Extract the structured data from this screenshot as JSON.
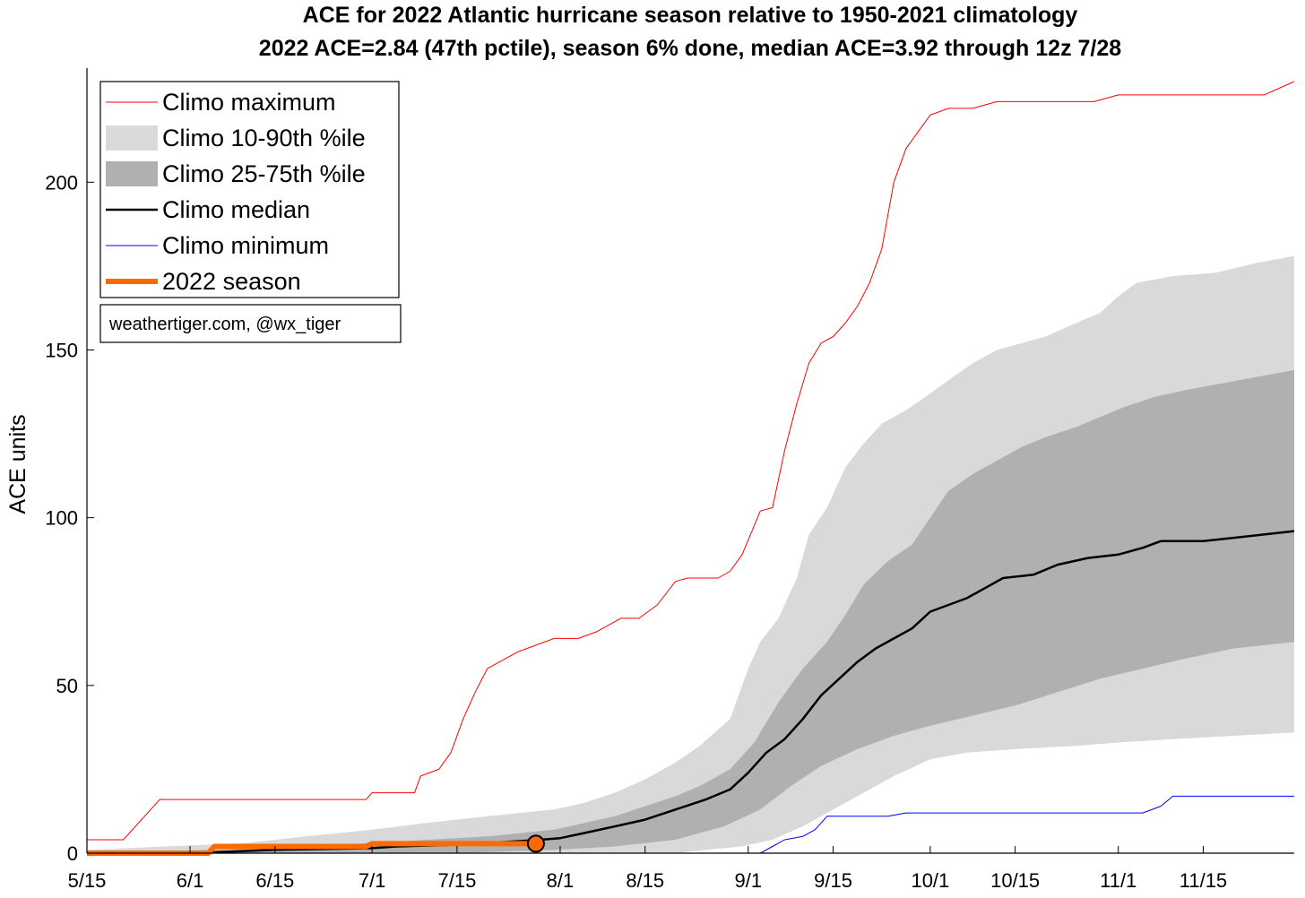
{
  "chart_data": {
    "type": "line",
    "title": "ACE for 2022 Atlantic hurricane season relative to 1950-2021 climatology",
    "subtitle": "2022 ACE=2.84 (47th pctile), season 6% done, median ACE=3.92 through 12z 7/28",
    "ylabel": "ACE units",
    "xlabel": "",
    "ylim": [
      0,
      234
    ],
    "yticks": [
      0,
      50,
      100,
      150,
      200
    ],
    "xlim": [
      "5/15",
      "11/30"
    ],
    "xticks": [
      {
        "label": "5/15",
        "date": "5/15"
      },
      {
        "label": "6/1",
        "date": "6/1"
      },
      {
        "label": "6/15",
        "date": "6/15"
      },
      {
        "label": "7/1",
        "date": "7/1"
      },
      {
        "label": "7/15",
        "date": "7/15"
      },
      {
        "label": "8/1",
        "date": "8/1"
      },
      {
        "label": "8/15",
        "date": "8/15"
      },
      {
        "label": "9/1",
        "date": "9/1"
      },
      {
        "label": "9/15",
        "date": "9/15"
      },
      {
        "label": "10/1",
        "date": "10/1"
      },
      {
        "label": "10/15",
        "date": "10/15"
      },
      {
        "label": "11/1",
        "date": "11/1"
      },
      {
        "label": "11/15",
        "date": "11/15"
      }
    ],
    "grid": false,
    "legend_position": "top-left",
    "credit": "weathertiger.com, @wx_tiger",
    "legend": [
      {
        "label": "Climo maximum",
        "kind": "line",
        "color": "#ff0000",
        "width": 1
      },
      {
        "label": "Climo 10-90th %ile",
        "kind": "patch",
        "color": "#d9d9d9"
      },
      {
        "label": "Climo 25-75th %ile",
        "kind": "patch",
        "color": "#b0b0b0"
      },
      {
        "label": "Climo median",
        "kind": "line",
        "color": "#000000",
        "width": 2.5
      },
      {
        "label": "Climo minimum",
        "kind": "line",
        "color": "#0000ff",
        "width": 1
      },
      {
        "label": "2022 season",
        "kind": "line",
        "color": "#ff6a00",
        "width": 6
      }
    ],
    "series": [
      {
        "name": "Climo maximum",
        "color": "#ff0000",
        "points": [
          [
            "5/15",
            4
          ],
          [
            "5/21",
            4
          ],
          [
            "5/24",
            10
          ],
          [
            "5/27",
            16
          ],
          [
            "6/1",
            16
          ],
          [
            "6/15",
            16
          ],
          [
            "6/30",
            16
          ],
          [
            "7/1",
            18
          ],
          [
            "7/8",
            18
          ],
          [
            "7/9",
            23
          ],
          [
            "7/12",
            25
          ],
          [
            "7/14",
            30
          ],
          [
            "7/16",
            40
          ],
          [
            "7/18",
            48
          ],
          [
            "7/20",
            55
          ],
          [
            "7/22",
            57
          ],
          [
            "7/25",
            60
          ],
          [
            "7/28",
            62
          ],
          [
            "7/31",
            64
          ],
          [
            "8/4",
            64
          ],
          [
            "8/7",
            66
          ],
          [
            "8/11",
            70
          ],
          [
            "8/14",
            70
          ],
          [
            "8/17",
            74
          ],
          [
            "8/20",
            81
          ],
          [
            "8/22",
            82
          ],
          [
            "8/27",
            82
          ],
          [
            "8/29",
            84
          ],
          [
            "8/31",
            89
          ],
          [
            "9/3",
            102
          ],
          [
            "9/5",
            103
          ],
          [
            "9/7",
            120
          ],
          [
            "9/9",
            134
          ],
          [
            "9/11",
            146
          ],
          [
            "9/13",
            152
          ],
          [
            "9/15",
            154
          ],
          [
            "9/17",
            158
          ],
          [
            "9/19",
            163
          ],
          [
            "9/21",
            170
          ],
          [
            "9/23",
            180
          ],
          [
            "9/25",
            200
          ],
          [
            "9/27",
            210
          ],
          [
            "9/29",
            215
          ],
          [
            "10/1",
            220
          ],
          [
            "10/4",
            222
          ],
          [
            "10/8",
            222
          ],
          [
            "10/12",
            224
          ],
          [
            "10/20",
            224
          ],
          [
            "10/28",
            224
          ],
          [
            "11/1",
            226
          ],
          [
            "11/10",
            226
          ],
          [
            "11/20",
            226
          ],
          [
            "11/25",
            226
          ],
          [
            "11/30",
            230
          ]
        ]
      },
      {
        "name": "Climo minimum",
        "color": "#0000ff",
        "points": [
          [
            "5/15",
            0
          ],
          [
            "9/3",
            0
          ],
          [
            "9/5",
            2
          ],
          [
            "9/7",
            4
          ],
          [
            "9/10",
            5
          ],
          [
            "9/12",
            7
          ],
          [
            "9/14",
            11
          ],
          [
            "9/17",
            11
          ],
          [
            "9/24",
            11
          ],
          [
            "9/27",
            12
          ],
          [
            "10/15",
            12
          ],
          [
            "10/31",
            12
          ],
          [
            "11/5",
            12
          ],
          [
            "11/8",
            14
          ],
          [
            "11/10",
            17
          ],
          [
            "11/20",
            17
          ],
          [
            "11/30",
            17
          ]
        ]
      },
      {
        "name": "Climo median",
        "color": "#000000",
        "points": [
          [
            "5/15",
            0
          ],
          [
            "6/1",
            0
          ],
          [
            "6/15",
            1
          ],
          [
            "7/1",
            1.5
          ],
          [
            "7/5",
            2
          ],
          [
            "7/15",
            2.5
          ],
          [
            "7/28",
            3.9
          ],
          [
            "8/1",
            4.5
          ],
          [
            "8/5",
            6
          ],
          [
            "8/10",
            8
          ],
          [
            "8/15",
            10
          ],
          [
            "8/20",
            13
          ],
          [
            "8/25",
            16
          ],
          [
            "8/29",
            19
          ],
          [
            "9/1",
            24
          ],
          [
            "9/4",
            30
          ],
          [
            "9/7",
            34
          ],
          [
            "9/10",
            40
          ],
          [
            "9/13",
            47
          ],
          [
            "9/16",
            52
          ],
          [
            "9/19",
            57
          ],
          [
            "9/22",
            61
          ],
          [
            "9/25",
            64
          ],
          [
            "9/28",
            67
          ],
          [
            "10/1",
            72
          ],
          [
            "10/4",
            74
          ],
          [
            "10/7",
            76
          ],
          [
            "10/10",
            79
          ],
          [
            "10/13",
            82
          ],
          [
            "10/18",
            83
          ],
          [
            "10/22",
            86
          ],
          [
            "10/27",
            88
          ],
          [
            "11/1",
            89
          ],
          [
            "11/5",
            91
          ],
          [
            "11/8",
            93
          ],
          [
            "11/15",
            93
          ],
          [
            "11/20",
            94
          ],
          [
            "11/25",
            95
          ],
          [
            "11/30",
            96
          ]
        ]
      },
      {
        "name": "2022 season",
        "color": "#ff6a00",
        "points": [
          [
            "5/15",
            0
          ],
          [
            "6/4",
            0
          ],
          [
            "6/5",
            2
          ],
          [
            "6/30",
            2
          ],
          [
            "7/1",
            2.84
          ],
          [
            "7/28",
            2.84
          ]
        ]
      }
    ],
    "bands": [
      {
        "name": "Climo 10-90th %ile",
        "color": "#d9d9d9",
        "upper": [
          [
            "5/15",
            1
          ],
          [
            "5/28",
            2
          ],
          [
            "6/10",
            3
          ],
          [
            "6/20",
            5
          ],
          [
            "7/1",
            7
          ],
          [
            "7/10",
            9
          ],
          [
            "7/20",
            11
          ],
          [
            "7/31",
            13
          ],
          [
            "8/5",
            15
          ],
          [
            "8/10",
            18
          ],
          [
            "8/15",
            22
          ],
          [
            "8/20",
            27
          ],
          [
            "8/24",
            32
          ],
          [
            "8/29",
            40
          ],
          [
            "9/1",
            55
          ],
          [
            "9/3",
            63
          ],
          [
            "9/6",
            70
          ],
          [
            "9/9",
            82
          ],
          [
            "9/11",
            95
          ],
          [
            "9/14",
            103
          ],
          [
            "9/17",
            115
          ],
          [
            "9/20",
            122
          ],
          [
            "9/23",
            128
          ],
          [
            "9/27",
            132
          ],
          [
            "10/1",
            137
          ],
          [
            "10/4",
            141
          ],
          [
            "10/8",
            146
          ],
          [
            "10/12",
            150
          ],
          [
            "10/16",
            152
          ],
          [
            "10/20",
            154
          ],
          [
            "10/25",
            158
          ],
          [
            "10/29",
            161
          ],
          [
            "11/1",
            166
          ],
          [
            "11/4",
            170
          ],
          [
            "11/10",
            172
          ],
          [
            "11/17",
            173
          ],
          [
            "11/24",
            176
          ],
          [
            "11/30",
            178
          ]
        ],
        "lower": [
          [
            "5/15",
            0
          ],
          [
            "8/20",
            0
          ],
          [
            "8/25",
            1
          ],
          [
            "8/31",
            2
          ],
          [
            "9/5",
            4
          ],
          [
            "9/10",
            8
          ],
          [
            "9/15",
            13
          ],
          [
            "9/20",
            18
          ],
          [
            "9/25",
            23
          ],
          [
            "10/1",
            28
          ],
          [
            "10/7",
            30
          ],
          [
            "10/15",
            31
          ],
          [
            "10/25",
            32
          ],
          [
            "11/1",
            33
          ],
          [
            "11/10",
            34
          ],
          [
            "11/20",
            35
          ],
          [
            "11/30",
            36
          ]
        ]
      },
      {
        "name": "Climo 25-75th %ile",
        "color": "#b0b0b0",
        "upper": [
          [
            "5/15",
            0
          ],
          [
            "6/5",
            1
          ],
          [
            "6/20",
            2
          ],
          [
            "7/1",
            3
          ],
          [
            "7/10",
            4
          ],
          [
            "7/20",
            5
          ],
          [
            "7/31",
            7
          ],
          [
            "8/5",
            9
          ],
          [
            "8/10",
            11
          ],
          [
            "8/15",
            14
          ],
          [
            "8/20",
            17
          ],
          [
            "8/24",
            20
          ],
          [
            "8/29",
            25
          ],
          [
            "9/2",
            33
          ],
          [
            "9/6",
            45
          ],
          [
            "9/10",
            55
          ],
          [
            "9/14",
            63
          ],
          [
            "9/17",
            71
          ],
          [
            "9/20",
            80
          ],
          [
            "9/24",
            87
          ],
          [
            "9/28",
            92
          ],
          [
            "10/1",
            100
          ],
          [
            "10/4",
            108
          ],
          [
            "10/8",
            113
          ],
          [
            "10/12",
            117
          ],
          [
            "10/16",
            121
          ],
          [
            "10/20",
            124
          ],
          [
            "10/25",
            127
          ],
          [
            "10/29",
            130
          ],
          [
            "11/2",
            133
          ],
          [
            "11/7",
            136
          ],
          [
            "11/12",
            138
          ],
          [
            "11/18",
            140
          ],
          [
            "11/24",
            142
          ],
          [
            "11/30",
            144
          ]
        ],
        "lower": [
          [
            "5/15",
            0
          ],
          [
            "7/15",
            0
          ],
          [
            "7/31",
            1
          ],
          [
            "8/10",
            2
          ],
          [
            "8/20",
            4
          ],
          [
            "8/28",
            8
          ],
          [
            "9/3",
            13
          ],
          [
            "9/8",
            20
          ],
          [
            "9/13",
            26
          ],
          [
            "9/19",
            31
          ],
          [
            "9/25",
            35
          ],
          [
            "10/1",
            38
          ],
          [
            "10/8",
            41
          ],
          [
            "10/15",
            44
          ],
          [
            "10/22",
            48
          ],
          [
            "10/29",
            52
          ],
          [
            "11/5",
            55
          ],
          [
            "11/12",
            58
          ],
          [
            "11/20",
            61
          ],
          [
            "11/30",
            63
          ]
        ]
      }
    ],
    "markers": [
      {
        "name": "2022 season current",
        "date": "7/28",
        "value": 2.84,
        "color": "#ff6a00"
      }
    ]
  }
}
